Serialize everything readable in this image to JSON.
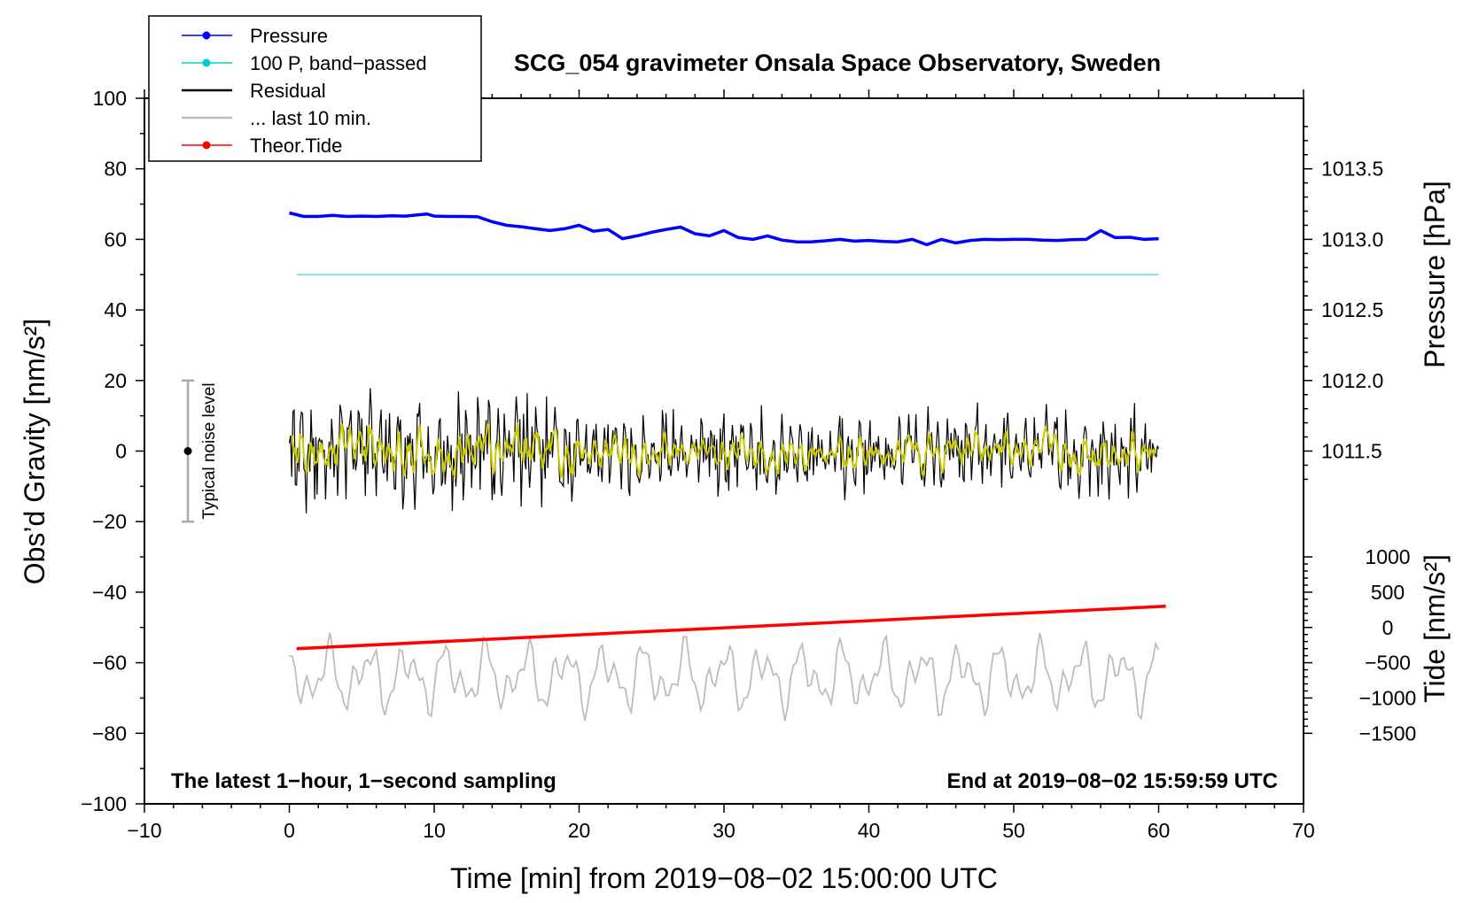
{
  "chart_data": {
    "type": "line",
    "title": "SCG_054 gravimeter Onsala Space Observatory, Sweden",
    "xlabel": "Time [min] from 2019−08−02 15:00:00 UTC",
    "ylabel": "Obs’d Gravity [nm/s²]",
    "y2label_pressure": "Pressure [hPa]",
    "y2label_tide": "Tide [nm/s²]",
    "xlim": [
      -10,
      70
    ],
    "ylim": [
      -100,
      100
    ],
    "xticks": [
      -10,
      0,
      10,
      20,
      30,
      40,
      50,
      60,
      70
    ],
    "xtick_labels": [
      "−10",
      "0",
      "10",
      "20",
      "30",
      "40",
      "50",
      "60",
      "70"
    ],
    "yticks": [
      100,
      80,
      60,
      40,
      20,
      0,
      -20,
      -40,
      -60,
      -80,
      -100
    ],
    "ytick_labels": [
      "100",
      "80",
      "60",
      "40",
      "20",
      "0",
      "−20",
      "−40",
      "−60",
      "−80",
      "−100"
    ],
    "pressure_axis": {
      "ticks": [
        1013.5,
        1013.0,
        1012.5,
        1012.0,
        1011.5
      ],
      "tick_labels": [
        "1013.5",
        "1013.0",
        "1012.5",
        "1012.0",
        "1011.5"
      ],
      "map_gravity_at_1013": 60,
      "gravity_per_hPa": 40
    },
    "tide_axis": {
      "ticks": [
        1000,
        500,
        0,
        -500,
        -1000,
        -1500
      ],
      "tick_labels": [
        "1000",
        "500",
        "0",
        "−500",
        "−1000",
        "−1500"
      ],
      "gravity_at_zero": -50,
      "gravity_per_unit": 0.02
    },
    "legend": [
      {
        "label": "Pressure",
        "color": "#0000ff",
        "marker": true
      },
      {
        "label": "100 P, band−passed",
        "color": "#00cccc",
        "marker": true
      },
      {
        "label": "Residual",
        "color": "#000000",
        "marker": false
      },
      {
        "label": "... last 10 min.",
        "color": "#bbbbbb",
        "marker": false
      },
      {
        "label": "Theor.Tide",
        "color": "#ff0000",
        "marker": true
      }
    ],
    "series": [
      {
        "name": "Pressure",
        "color": "#0000ff",
        "x": [
          0,
          1,
          2,
          3,
          4,
          5,
          6,
          7,
          8,
          9,
          9.5,
          10,
          11,
          12,
          13,
          14,
          15,
          16,
          17,
          18,
          19,
          20,
          21,
          22,
          23,
          24,
          25,
          26,
          27,
          28,
          29,
          30,
          31,
          32,
          33,
          34,
          35,
          36,
          37,
          38,
          39,
          40,
          41,
          42,
          43,
          44,
          45,
          46,
          47,
          48,
          49,
          50,
          51,
          52,
          53,
          54,
          55,
          56,
          57,
          58,
          59,
          60
        ],
        "values": [
          67.5,
          66.5,
          66.5,
          66.8,
          66.5,
          66.6,
          66.5,
          66.7,
          66.6,
          67,
          67.2,
          66.6,
          66.5,
          66.5,
          66.4,
          65,
          64,
          63.6,
          63,
          62.5,
          63,
          64,
          62.3,
          62.8,
          60.2,
          61,
          62,
          62.8,
          63.5,
          61.6,
          61,
          62.5,
          60.5,
          60,
          61,
          59.8,
          59.3,
          59.3,
          59.6,
          60,
          59.5,
          59.7,
          59.4,
          59.3,
          60,
          58.5,
          60,
          59,
          59.7,
          60,
          59.9,
          60,
          60,
          59.8,
          59.7,
          59.9,
          60,
          62.5,
          60.5,
          60.6,
          60,
          60.2
        ]
      },
      {
        "name": "100 P, band−passed",
        "color": "#66dddd",
        "x": [
          0.5,
          60
        ],
        "values": [
          50,
          50
        ]
      },
      {
        "name": "Theor.Tide",
        "color": "#ff0000",
        "x": [
          0.5,
          60.5
        ],
        "values": [
          -56,
          -44
        ]
      }
    ],
    "noise_bar": {
      "x": -7,
      "y": 0,
      "ymin": -20,
      "ymax": 20,
      "label": "Typical noise level"
    },
    "annotations": {
      "left": "The latest 1−hour, 1−second sampling",
      "right": "End at 2019−08−02 15:59:59 UTC"
    }
  }
}
